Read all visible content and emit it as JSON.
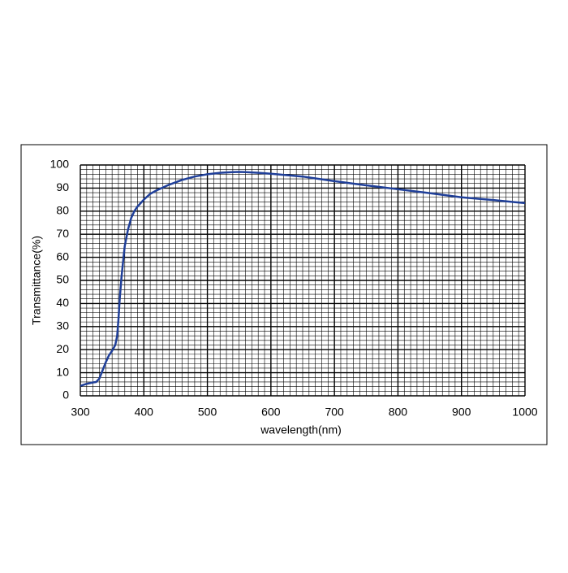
{
  "chart_data": {
    "type": "line",
    "xlabel": "wavelength(nm)",
    "ylabel": "Transmittance(%)",
    "x": [
      300,
      310,
      320,
      325,
      330,
      335,
      340,
      345,
      350,
      355,
      358,
      360,
      362,
      365,
      368,
      370,
      375,
      380,
      385,
      390,
      400,
      410,
      420,
      440,
      460,
      480,
      500,
      520,
      540,
      550,
      560,
      580,
      600,
      650,
      700,
      750,
      800,
      850,
      900,
      950,
      1000
    ],
    "series": [
      {
        "color": "#1f3f99",
        "values": [
          4.3,
          5.2,
          5.8,
          6,
          7.5,
          11,
          14.5,
          17.5,
          19.5,
          22,
          26,
          33,
          42,
          52,
          60,
          65,
          72,
          77,
          80,
          82,
          85,
          87.5,
          89,
          91.5,
          93.5,
          95,
          96,
          96.6,
          96.9,
          97,
          96.9,
          96.6,
          96.2,
          95,
          93,
          91.2,
          89.5,
          87.8,
          86,
          84.8,
          83.5
        ]
      }
    ],
    "xlim": [
      300,
      1000
    ],
    "xticks": [
      300,
      400,
      500,
      600,
      700,
      800,
      900,
      1000
    ],
    "ylim": [
      0,
      100
    ],
    "yticks": [
      0,
      10,
      20,
      30,
      40,
      50,
      60,
      70,
      80,
      90,
      100
    ],
    "grid": true
  }
}
